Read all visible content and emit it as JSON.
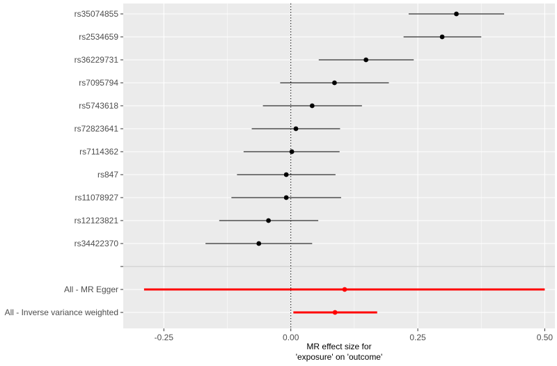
{
  "chart_data": {
    "type": "forest",
    "xlabel_lines": [
      "MR effect size for",
      "'exposure' on 'outcome'"
    ],
    "xlim": [
      -0.33,
      0.52
    ],
    "x_ticks": [
      -0.25,
      0,
      0.25,
      0.5
    ],
    "x_tick_labels": [
      "-0.25",
      "0.00",
      "0.25",
      "0.50"
    ],
    "reference_line": 0,
    "grid": true,
    "colors": {
      "snp": "#000000",
      "summary": "#ff0000",
      "panel": "#ebebeb",
      "grid": "#ffffff"
    },
    "rows": [
      {
        "label": "rs35074855",
        "estimate": 0.326,
        "lower": 0.232,
        "upper": 0.42,
        "group": "snp"
      },
      {
        "label": "rs2534659",
        "estimate": 0.298,
        "lower": 0.222,
        "upper": 0.375,
        "group": "snp"
      },
      {
        "label": "rs36229731",
        "estimate": 0.148,
        "lower": 0.055,
        "upper": 0.242,
        "group": "snp"
      },
      {
        "label": "rs7095794",
        "estimate": 0.086,
        "lower": -0.021,
        "upper": 0.193,
        "group": "snp"
      },
      {
        "label": "rs5743618",
        "estimate": 0.042,
        "lower": -0.055,
        "upper": 0.14,
        "group": "snp"
      },
      {
        "label": "rs72823641",
        "estimate": 0.01,
        "lower": -0.077,
        "upper": 0.097,
        "group": "snp"
      },
      {
        "label": "rs7114362",
        "estimate": 0.002,
        "lower": -0.093,
        "upper": 0.096,
        "group": "snp"
      },
      {
        "label": "rs847",
        "estimate": -0.009,
        "lower": -0.106,
        "upper": 0.088,
        "group": "snp"
      },
      {
        "label": "rs11078927",
        "estimate": -0.009,
        "lower": -0.117,
        "upper": 0.099,
        "group": "snp"
      },
      {
        "label": "rs12123821",
        "estimate": -0.044,
        "lower": -0.141,
        "upper": 0.054,
        "group": "snp"
      },
      {
        "label": "rs34422370",
        "estimate": -0.063,
        "lower": -0.168,
        "upper": 0.042,
        "group": "snp"
      },
      {
        "label": "",
        "estimate": null,
        "lower": null,
        "upper": null,
        "group": "separator"
      },
      {
        "label": "All - MR Egger",
        "estimate": 0.106,
        "lower": -0.289,
        "upper": 0.5,
        "group": "summary"
      },
      {
        "label": "All - Inverse variance weighted",
        "estimate": 0.087,
        "lower": 0.005,
        "upper": 0.17,
        "group": "summary"
      }
    ]
  }
}
